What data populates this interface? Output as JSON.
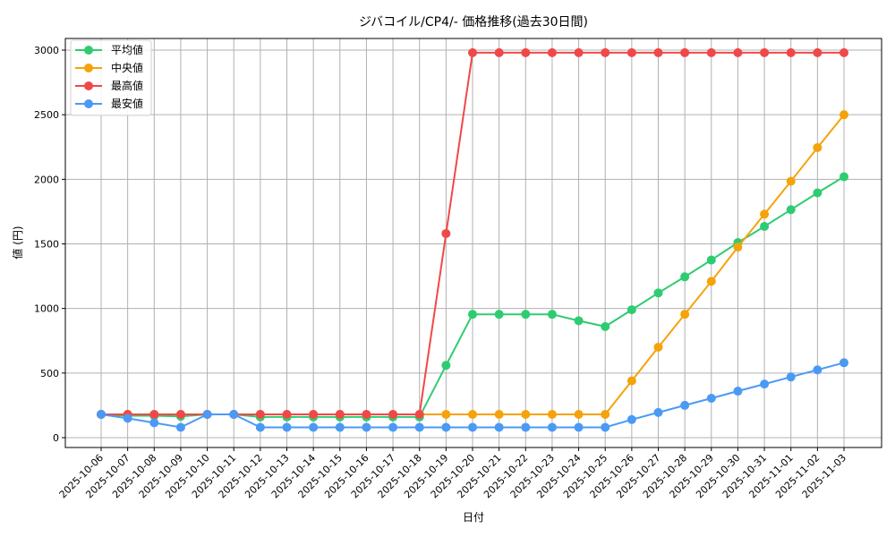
{
  "chart_data": {
    "type": "line",
    "title": "ジバコイル/CP4/- 価格推移(過去30日間)",
    "xlabel": "日付",
    "ylabel": "値 (円)",
    "ylim": [
      -80,
      3120
    ],
    "yticks": [
      0,
      500,
      1000,
      1500,
      2000,
      2500,
      3000
    ],
    "grid": true,
    "legend_position": "upper left",
    "x": [
      "2025-10-06",
      "2025-10-07",
      "2025-10-08",
      "2025-10-09",
      "2025-10-10",
      "2025-10-11",
      "2025-10-12",
      "2025-10-13",
      "2025-10-14",
      "2025-10-15",
      "2025-10-16",
      "2025-10-17",
      "2025-10-18",
      "2025-10-19",
      "2025-10-20",
      "2025-10-21",
      "2025-10-22",
      "2025-10-23",
      "2025-10-24",
      "2025-10-25",
      "2025-10-26",
      "2025-10-27",
      "2025-10-28",
      "2025-10-29",
      "2025-10-30",
      "2025-10-31",
      "2025-11-01",
      "2025-11-02",
      "2025-11-03"
    ],
    "series": [
      {
        "name": "平均値",
        "color": "#2ecc71",
        "values": [
          180,
          170,
          170,
          165,
          180,
          180,
          160,
          160,
          160,
          160,
          160,
          160,
          160,
          560,
          955,
          955,
          955,
          955,
          905,
          860,
          990,
          1120,
          1245,
          1375,
          1510,
          1635,
          1765,
          1895,
          2020
        ]
      },
      {
        "name": "中央値",
        "color": "#f5a30a",
        "values": [
          180,
          180,
          180,
          180,
          180,
          180,
          180,
          180,
          180,
          180,
          180,
          180,
          180,
          180,
          180,
          180,
          180,
          180,
          180,
          180,
          440,
          700,
          955,
          1210,
          1475,
          1730,
          1985,
          2245,
          2500
        ]
      },
      {
        "name": "最高値",
        "color": "#f04848",
        "values": [
          180,
          180,
          180,
          180,
          180,
          180,
          180,
          180,
          180,
          180,
          180,
          180,
          180,
          1580,
          2980,
          2980,
          2980,
          2980,
          2980,
          2980,
          2980,
          2980,
          2980,
          2980,
          2980,
          2980,
          2980,
          2980,
          2980
        ]
      },
      {
        "name": "最安値",
        "color": "#4a9af5",
        "values": [
          180,
          150,
          115,
          80,
          180,
          180,
          80,
          80,
          80,
          80,
          80,
          80,
          80,
          80,
          80,
          80,
          80,
          80,
          80,
          80,
          140,
          195,
          250,
          305,
          360,
          415,
          470,
          525,
          580
        ]
      }
    ]
  }
}
